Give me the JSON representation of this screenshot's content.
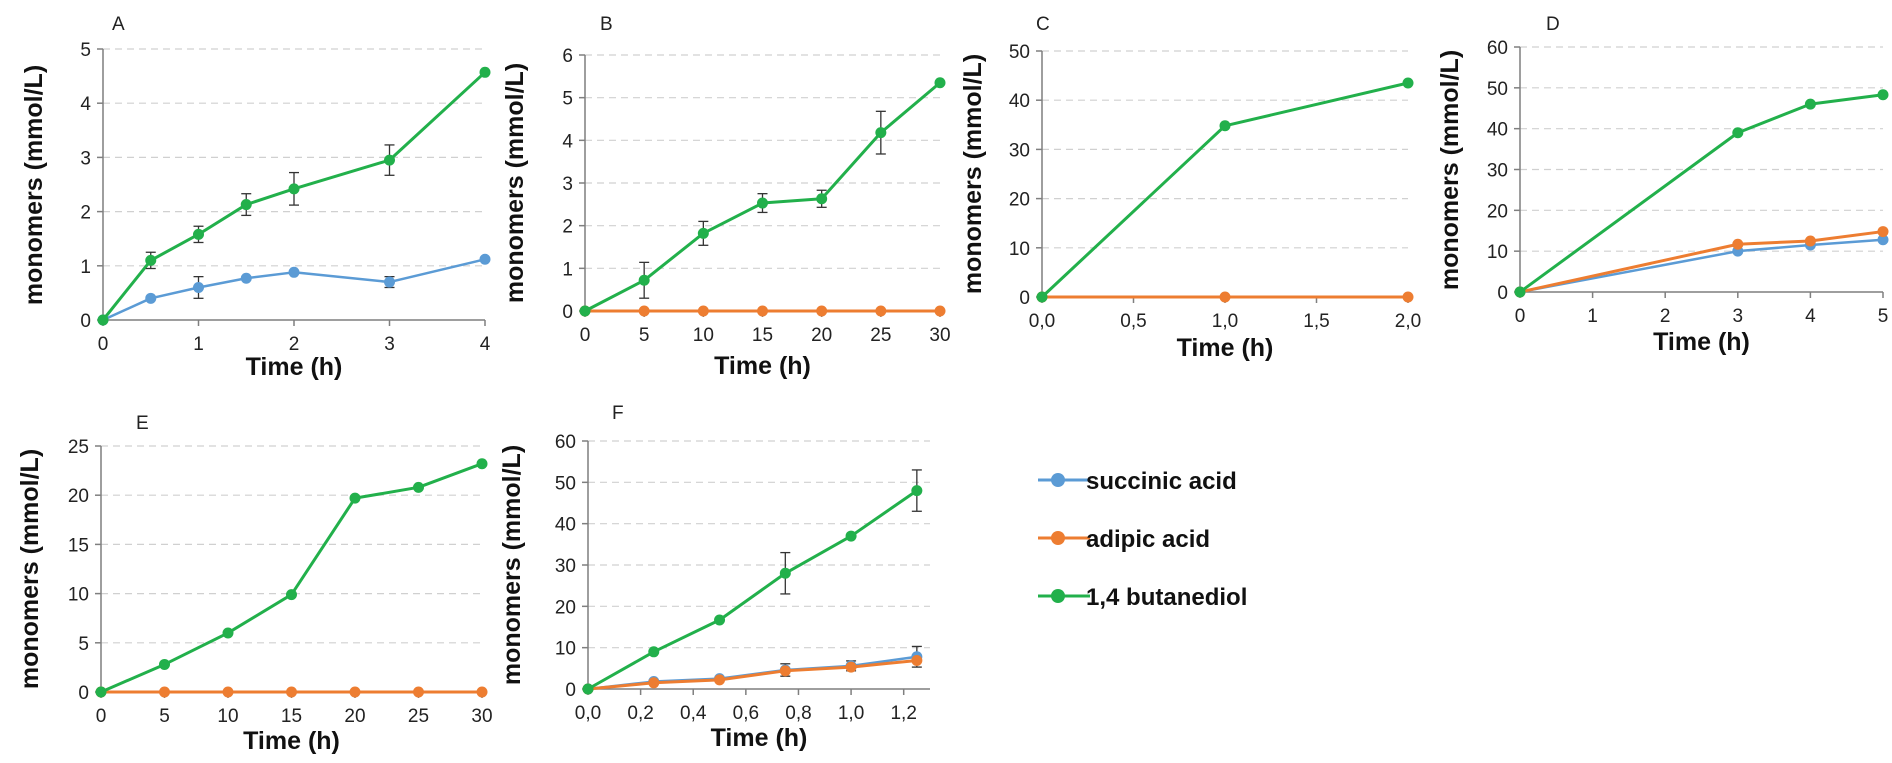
{
  "colors": {
    "succinic": "#5b9bd5",
    "adipic": "#ed7d31",
    "butanediol": "#22b04b",
    "grid": "#d0d0d0",
    "axis": "#7f7f7f",
    "error": "#333333"
  },
  "legend": {
    "items": [
      {
        "label": "succinic acid",
        "color": "#5b9bd5"
      },
      {
        "label": "adipic acid",
        "color": "#ed7d31"
      },
      {
        "label": "1,4 butanediol",
        "color": "#22b04b"
      }
    ]
  },
  "chart_data": [
    {
      "panel": "A",
      "type": "line",
      "xlabel": "Time (h)",
      "ylabel": "monomers (mmol/L)",
      "xlim": [
        0,
        4
      ],
      "ylim": [
        0,
        5
      ],
      "xticks": [
        0,
        1,
        2,
        3,
        4
      ],
      "yticks": [
        0,
        1,
        2,
        3,
        4,
        5
      ],
      "xtick_labels": [
        "0",
        "1",
        "2",
        "3",
        "4"
      ],
      "ytick_labels": [
        "0",
        "1",
        "2",
        "3",
        "4",
        "5"
      ],
      "grid": true,
      "series": [
        {
          "key": "succinic",
          "points": [
            [
              0,
              0
            ],
            [
              0.5,
              0.4
            ],
            [
              1,
              0.6
            ],
            [
              1.5,
              0.77
            ],
            [
              2,
              0.88
            ],
            [
              3,
              0.7
            ],
            [
              4,
              1.12
            ]
          ],
          "err": [
            0,
            0,
            0.2,
            0,
            0,
            0.1,
            0
          ]
        },
        {
          "key": "butanediol",
          "points": [
            [
              0,
              0
            ],
            [
              0.5,
              1.1
            ],
            [
              1,
              1.58
            ],
            [
              1.5,
              2.13
            ],
            [
              2,
              2.42
            ],
            [
              3,
              2.95
            ],
            [
              4,
              4.57
            ]
          ],
          "err": [
            0,
            0.15,
            0.15,
            0.2,
            0.3,
            0.28,
            0
          ]
        }
      ]
    },
    {
      "panel": "B",
      "type": "line",
      "xlabel": "Time (h)",
      "ylabel": "monomers (mmol/L)",
      "xlim": [
        0,
        30
      ],
      "ylim": [
        0,
        6
      ],
      "xticks": [
        0,
        5,
        10,
        15,
        20,
        25,
        30
      ],
      "yticks": [
        0,
        1,
        2,
        3,
        4,
        5,
        6
      ],
      "xtick_labels": [
        "0",
        "5",
        "10",
        "15",
        "20",
        "25",
        "30"
      ],
      "ytick_labels": [
        "0",
        "1",
        "2",
        "3",
        "4",
        "5",
        "6"
      ],
      "grid": true,
      "series": [
        {
          "key": "adipic",
          "points": [
            [
              0,
              0
            ],
            [
              5,
              0
            ],
            [
              10,
              0
            ],
            [
              15,
              0
            ],
            [
              20,
              0
            ],
            [
              25,
              0
            ],
            [
              30,
              0
            ]
          ],
          "err": [
            0,
            0,
            0,
            0,
            0,
            0,
            0
          ]
        },
        {
          "key": "butanediol",
          "points": [
            [
              0,
              0
            ],
            [
              5,
              0.72
            ],
            [
              10,
              1.82
            ],
            [
              15,
              2.53
            ],
            [
              20,
              2.63
            ],
            [
              25,
              4.18
            ],
            [
              30,
              5.35
            ]
          ],
          "err": [
            0,
            0.42,
            0.28,
            0.22,
            0.2,
            0.5,
            0
          ]
        }
      ]
    },
    {
      "panel": "C",
      "type": "line",
      "xlabel": "Time (h)",
      "ylabel": "monomers (mmol/L)",
      "xlim": [
        0,
        2
      ],
      "ylim": [
        0,
        50
      ],
      "xticks": [
        0,
        0.5,
        1,
        1.5,
        2
      ],
      "yticks": [
        0,
        10,
        20,
        30,
        40,
        50
      ],
      "xtick_labels": [
        "0,0",
        "0,5",
        "1,0",
        "1,5",
        "2,0"
      ],
      "ytick_labels": [
        "0",
        "10",
        "20",
        "30",
        "40",
        "50"
      ],
      "grid": true,
      "series": [
        {
          "key": "adipic",
          "points": [
            [
              0,
              0
            ],
            [
              1,
              0
            ],
            [
              2,
              0
            ]
          ],
          "err": [
            0,
            0,
            0
          ]
        },
        {
          "key": "butanediol",
          "points": [
            [
              0,
              0
            ],
            [
              1,
              34.8
            ],
            [
              2,
              43.5
            ]
          ],
          "err": [
            0,
            0,
            0
          ]
        }
      ]
    },
    {
      "panel": "D",
      "type": "line",
      "xlabel": "Time (h)",
      "ylabel": "monomers (mmol/L)",
      "xlim": [
        0,
        5
      ],
      "ylim": [
        0,
        60
      ],
      "xticks": [
        0,
        1,
        2,
        3,
        4,
        5
      ],
      "yticks": [
        0,
        10,
        20,
        30,
        40,
        50,
        60
      ],
      "xtick_labels": [
        "0",
        "1",
        "2",
        "3",
        "4",
        "5"
      ],
      "ytick_labels": [
        "0",
        "10",
        "20",
        "30",
        "40",
        "50",
        "60"
      ],
      "grid": true,
      "series": [
        {
          "key": "succinic",
          "points": [
            [
              0,
              0
            ],
            [
              3,
              10
            ],
            [
              4,
              11.5
            ],
            [
              5,
              12.8
            ]
          ],
          "err": [
            0,
            0,
            0,
            0
          ]
        },
        {
          "key": "adipic",
          "points": [
            [
              0,
              0
            ],
            [
              3,
              11.7
            ],
            [
              4,
              12.5
            ],
            [
              5,
              14.8
            ]
          ],
          "err": [
            0,
            0,
            0,
            0
          ]
        },
        {
          "key": "butanediol",
          "points": [
            [
              0,
              0
            ],
            [
              3,
              39
            ],
            [
              4,
              46
            ],
            [
              5,
              48.3
            ]
          ],
          "err": [
            0,
            0,
            0,
            0
          ]
        }
      ]
    },
    {
      "panel": "E",
      "type": "line",
      "xlabel": "Time (h)",
      "ylabel": "monomers (mmol/L)",
      "xlim": [
        0,
        30
      ],
      "ylim": [
        0,
        25
      ],
      "xticks": [
        0,
        5,
        10,
        15,
        20,
        25,
        30
      ],
      "yticks": [
        0,
        5,
        10,
        15,
        20,
        25
      ],
      "xtick_labels": [
        "0",
        "5",
        "10",
        "15",
        "20",
        "25",
        "30"
      ],
      "ytick_labels": [
        "0",
        "5",
        "10",
        "15",
        "20",
        "25"
      ],
      "grid": true,
      "series": [
        {
          "key": "adipic",
          "points": [
            [
              0,
              0
            ],
            [
              5,
              0
            ],
            [
              10,
              0
            ],
            [
              15,
              0
            ],
            [
              20,
              0
            ],
            [
              25,
              0
            ],
            [
              30,
              0
            ]
          ],
          "err": [
            0,
            0,
            0,
            0,
            0,
            0,
            0
          ]
        },
        {
          "key": "butanediol",
          "points": [
            [
              0,
              0
            ],
            [
              5,
              2.8
            ],
            [
              10,
              6
            ],
            [
              15,
              9.9
            ],
            [
              20,
              19.7
            ],
            [
              25,
              20.8
            ],
            [
              30,
              23.2
            ]
          ],
          "err": [
            0,
            0,
            0,
            0,
            0,
            0,
            0
          ]
        }
      ]
    },
    {
      "panel": "F",
      "type": "line",
      "xlabel": "Time (h)",
      "ylabel": "monomers (mmol/L)",
      "xlim": [
        0,
        1.3
      ],
      "ylim": [
        0,
        60
      ],
      "xticks": [
        0,
        0.2,
        0.4,
        0.6,
        0.8,
        1.0,
        1.2
      ],
      "yticks": [
        0,
        10,
        20,
        30,
        40,
        50,
        60
      ],
      "xtick_labels": [
        "0,0",
        "0,2",
        "0,4",
        "0,6",
        "0,8",
        "1,0",
        "1,2"
      ],
      "ytick_labels": [
        "0",
        "10",
        "20",
        "30",
        "40",
        "50",
        "60"
      ],
      "grid": true,
      "series": [
        {
          "key": "succinic",
          "points": [
            [
              0,
              0
            ],
            [
              0.25,
              1.8
            ],
            [
              0.5,
              2.5
            ],
            [
              0.75,
              4.6
            ],
            [
              1.0,
              5.6
            ],
            [
              1.25,
              7.8
            ]
          ],
          "err": [
            0,
            0,
            0,
            1.5,
            1.2,
            2.5
          ]
        },
        {
          "key": "adipic",
          "points": [
            [
              0,
              0
            ],
            [
              0.25,
              1.5
            ],
            [
              0.5,
              2.2
            ],
            [
              0.75,
              4.4
            ],
            [
              1.0,
              5.3
            ],
            [
              1.25,
              6.9
            ]
          ],
          "err": [
            0,
            0,
            0,
            0,
            0,
            0
          ]
        },
        {
          "key": "butanediol",
          "points": [
            [
              0,
              0
            ],
            [
              0.25,
              9
            ],
            [
              0.5,
              16.7
            ],
            [
              0.75,
              28
            ],
            [
              1.0,
              37
            ],
            [
              1.25,
              48
            ]
          ],
          "err": [
            0,
            0,
            0,
            5,
            0,
            5
          ]
        }
      ]
    }
  ]
}
